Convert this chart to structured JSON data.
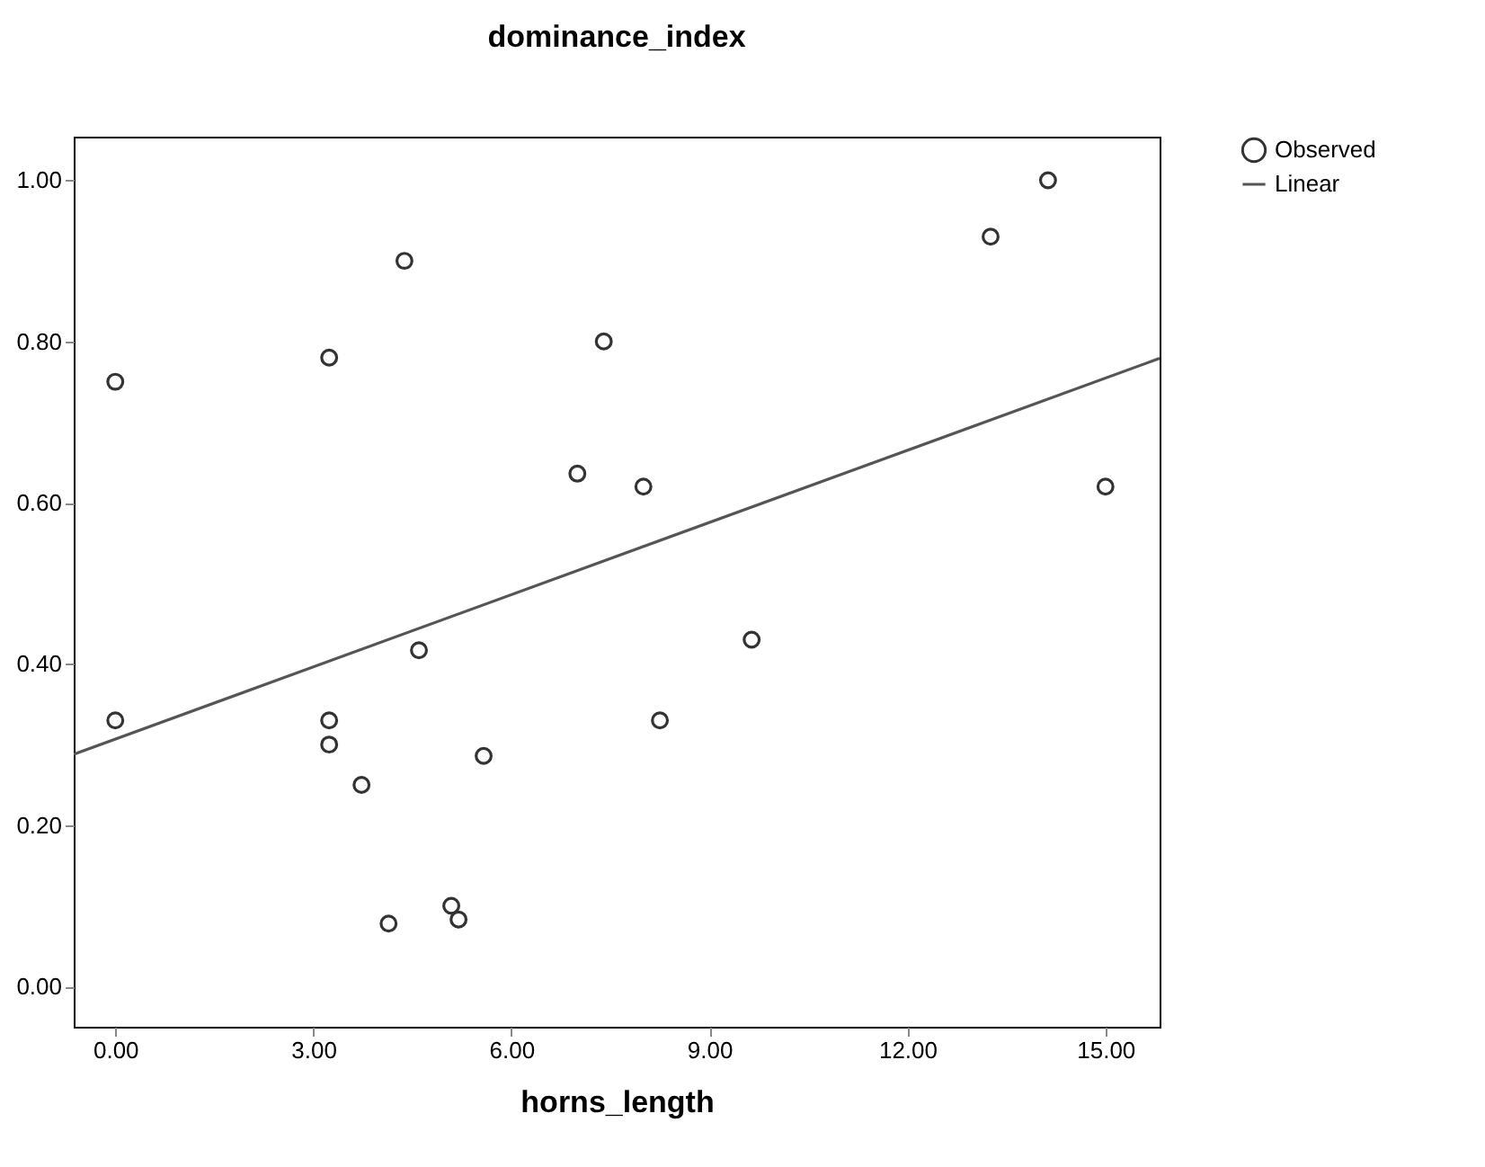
{
  "chart_data": {
    "type": "scatter",
    "title": "dominance_index",
    "xlabel": "horns_length",
    "xlim": [
      -0.63,
      15.82
    ],
    "ylim": [
      -0.05,
      1.054
    ],
    "xticks": [
      {
        "value": 0,
        "label": "0.00"
      },
      {
        "value": 3,
        "label": "3.00"
      },
      {
        "value": 6,
        "label": "6.00"
      },
      {
        "value": 9,
        "label": "9.00"
      },
      {
        "value": 12,
        "label": "12.00"
      },
      {
        "value": 15,
        "label": "15.00"
      }
    ],
    "yticks": [
      {
        "value": 0,
        "label": "0.00"
      },
      {
        "value": 0.2,
        "label": "0.20"
      },
      {
        "value": 0.4,
        "label": "0.40"
      },
      {
        "value": 0.6,
        "label": "0.60"
      },
      {
        "value": 0.8,
        "label": "0.80"
      },
      {
        "value": 1,
        "label": "1.00"
      }
    ],
    "legend": "right",
    "line_style": "solid",
    "series": [
      {
        "name": "Observed",
        "marker": "circle",
        "color": "#333333",
        "x": [
          0,
          0,
          3.24,
          4.38,
          3.24,
          3.24,
          3.73,
          4.14,
          5.09,
          5.2,
          4.6,
          5.58,
          7.0,
          7.4,
          8.0,
          8.25,
          9.64,
          13.26,
          14.13,
          15.0
        ],
        "values": [
          0.75,
          0.33,
          0.78,
          0.9,
          0.33,
          0.3,
          0.25,
          0.078,
          0.1,
          0.083,
          0.417,
          0.286,
          0.636,
          0.8,
          0.62,
          0.33,
          0.43,
          0.93,
          1.0,
          0.62
        ]
      },
      {
        "name": "Linear",
        "type": "line",
        "color": "#555555",
        "x": [
          -0.63,
          15.82
        ],
        "values": [
          0.288,
          0.779
        ]
      }
    ]
  }
}
